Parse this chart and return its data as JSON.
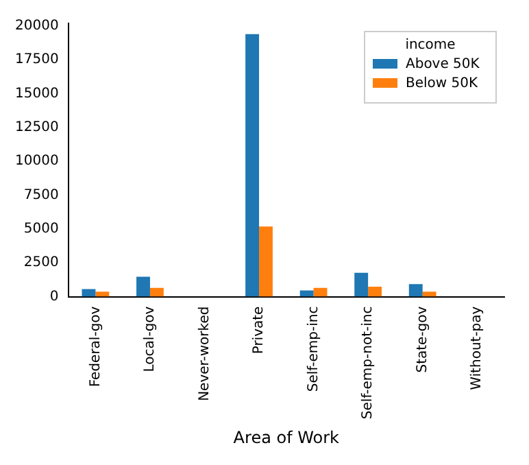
{
  "chart_data": {
    "type": "bar",
    "xlabel": "Area of Work",
    "legend_title": "income",
    "legend": "top right",
    "grid": false,
    "categories": [
      "Federal-gov",
      "Local-gov",
      "Never-worked",
      "Private",
      "Self-emp-inc",
      "Self-emp-not-inc",
      "State-gov",
      "Without-pay"
    ],
    "series": [
      {
        "name": "Above 50K",
        "color": "#1f77b4",
        "values": [
          560,
          1480,
          0,
          19400,
          460,
          1760,
          930,
          0
        ]
      },
      {
        "name": "Below 50K",
        "color": "#ff7f0e",
        "values": [
          370,
          650,
          0,
          5190,
          650,
          740,
          370,
          0
        ]
      }
    ],
    "ylim": [
      0,
      20200
    ],
    "yticks": [
      0,
      2500,
      5000,
      7500,
      10000,
      12500,
      15000,
      17500,
      20000
    ]
  }
}
